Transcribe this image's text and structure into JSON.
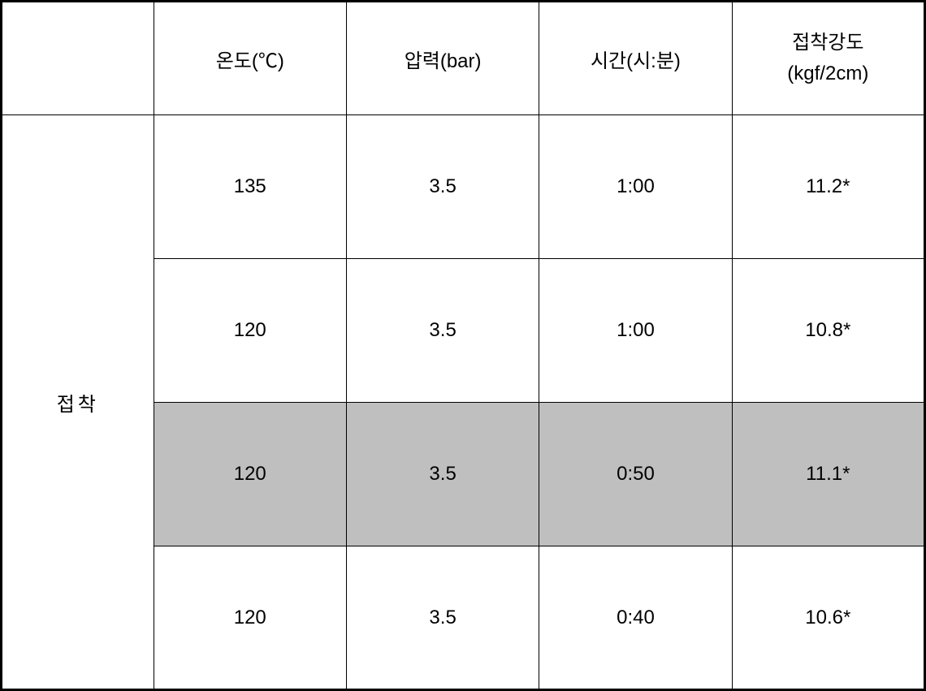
{
  "table": {
    "columns": {
      "rowLabel": "접착",
      "temperature": "온도(℃)",
      "pressure": "압력(bar)",
      "time": "시간(시:분)",
      "strength_line1": "접착강도",
      "strength_line2": "(kgf/2cm)"
    },
    "rows": [
      {
        "temperature": "135",
        "pressure": "3.5",
        "time": "1:00",
        "strength": "11.2*",
        "highlighted": false
      },
      {
        "temperature": "120",
        "pressure": "3.5",
        "time": "1:00",
        "strength": "10.8*",
        "highlighted": false
      },
      {
        "temperature": "120",
        "pressure": "3.5",
        "time": "0:50",
        "strength": "11.1*",
        "highlighted": true
      },
      {
        "temperature": "120",
        "pressure": "3.5",
        "time": "0:40",
        "strength": "10.6*",
        "highlighted": false
      }
    ],
    "styling": {
      "background_color": "#ffffff",
      "highlight_color": "#bfbfbf",
      "border_color": "#000000",
      "outer_border_width": 3,
      "inner_border_width": 1,
      "font_size": 24,
      "text_color": "#000000",
      "header_row_height": 140,
      "data_row_height": 177,
      "col_label_width_pct": 16.5,
      "col_data_width_pct": 20.875
    }
  }
}
